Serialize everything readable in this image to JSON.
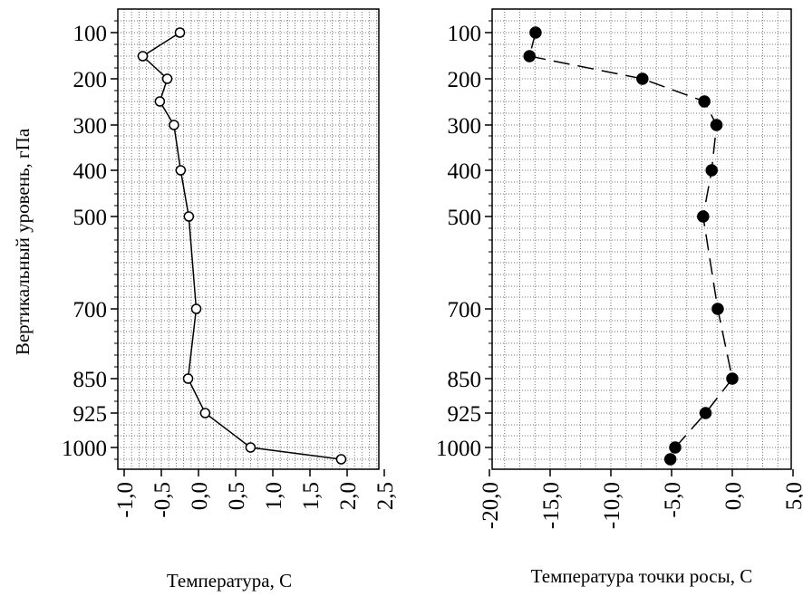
{
  "chart_data": [
    {
      "type": "line",
      "xlabel": "Температура, С",
      "ylabel": "Вертикальный уровень, гПа",
      "xlim": [
        -1.0,
        2.5
      ],
      "xticks": [
        "-1,0",
        "-0,5",
        "0,0",
        "0,5",
        "1,0",
        "1,5",
        "2,0",
        "2,5"
      ],
      "yticks": [
        "100",
        "200",
        "300",
        "400",
        "500",
        "700",
        "850",
        "925",
        "1000"
      ],
      "grid": true,
      "marker": "open-circle",
      "line_style": "solid",
      "series": [
        {
          "points": [
            {
              "x": -0.25,
              "y": 100
            },
            {
              "x": -0.75,
              "y": 150
            },
            {
              "x": -0.42,
              "y": 200
            },
            {
              "x": -0.52,
              "y": 250
            },
            {
              "x": -0.33,
              "y": 300
            },
            {
              "x": -0.24,
              "y": 400
            },
            {
              "x": -0.13,
              "y": 500
            },
            {
              "x": -0.03,
              "y": 700
            },
            {
              "x": -0.14,
              "y": 850
            },
            {
              "x": 0.09,
              "y": 925
            },
            {
              "x": 0.7,
              "y": 1000
            },
            {
              "x": 1.92,
              "y": 1025
            }
          ]
        }
      ]
    },
    {
      "type": "line",
      "xlabel": "Температура точки росы, С",
      "xlim": [
        -20.0,
        5.0
      ],
      "xticks": [
        "-20,0",
        "-15,0",
        "-10,0",
        "-5,0",
        "0,0",
        "5,0"
      ],
      "yticks": [
        "100",
        "200",
        "300",
        "400",
        "500",
        "700",
        "850",
        "925",
        "1000"
      ],
      "grid": true,
      "marker": "filled-circle",
      "line_style": "dashed",
      "series": [
        {
          "points": [
            {
              "x": -16.2,
              "y": 100
            },
            {
              "x": -16.7,
              "y": 150
            },
            {
              "x": -7.4,
              "y": 200
            },
            {
              "x": -2.3,
              "y": 250
            },
            {
              "x": -1.3,
              "y": 300
            },
            {
              "x": -1.7,
              "y": 400
            },
            {
              "x": -2.4,
              "y": 500
            },
            {
              "x": -1.2,
              "y": 700
            },
            {
              "x": 0.0,
              "y": 850
            },
            {
              "x": -2.2,
              "y": 925
            },
            {
              "x": -4.7,
              "y": 1000
            },
            {
              "x": -5.1,
              "y": 1025
            }
          ]
        }
      ]
    }
  ]
}
